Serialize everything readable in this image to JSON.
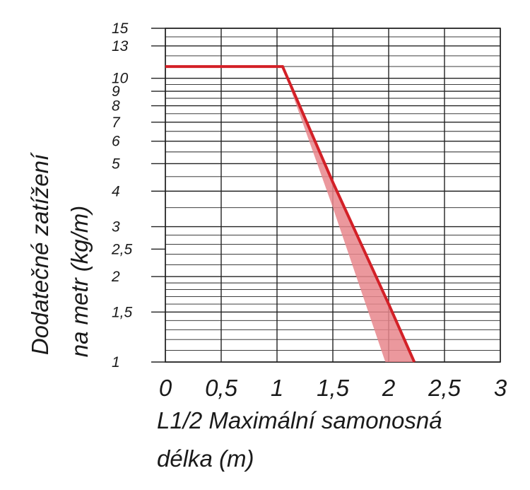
{
  "chart_data": {
    "type": "line",
    "xlabel_lines": [
      "L1/2 Maximální samonosná",
      "délka (m)"
    ],
    "ylabel_lines": [
      "Dodatečné zatížení",
      "na metr (kg/m)"
    ],
    "x_ticks": [
      "0",
      "0,5",
      "1",
      "1,5",
      "2",
      "2,5",
      "3"
    ],
    "x_tick_values": [
      0,
      0.5,
      1,
      1.5,
      2,
      2.5,
      3
    ],
    "y_ticks": [
      "1",
      "1,5",
      "2",
      "2,5",
      "3",
      "4",
      "5",
      "6",
      "7",
      "8",
      "9",
      "10",
      "13",
      "15"
    ],
    "y_tick_values": [
      1,
      1.5,
      2,
      2.5,
      3,
      4,
      5,
      6,
      7,
      8,
      9,
      10,
      13,
      15
    ],
    "xlim": [
      0,
      3
    ],
    "ylim": [
      1,
      15
    ],
    "y_scale": "log",
    "grid": true,
    "series": [
      {
        "points": [
          [
            0,
            11
          ],
          [
            1.05,
            11
          ],
          [
            1.5,
            4.3
          ],
          [
            2.0,
            1.6
          ],
          [
            2.23,
            1.0
          ]
        ]
      }
    ],
    "band": {
      "upper": [
        [
          1.05,
          11
        ],
        [
          1.5,
          4.3
        ],
        [
          2.0,
          1.6
        ],
        [
          2.23,
          1.0
        ]
      ],
      "lower": [
        [
          1.05,
          11
        ],
        [
          1.5,
          3.5
        ],
        [
          1.97,
          1.0
        ]
      ]
    },
    "colors": {
      "line": "#d32027",
      "band": "#e8868c",
      "grid": "#222222"
    }
  }
}
